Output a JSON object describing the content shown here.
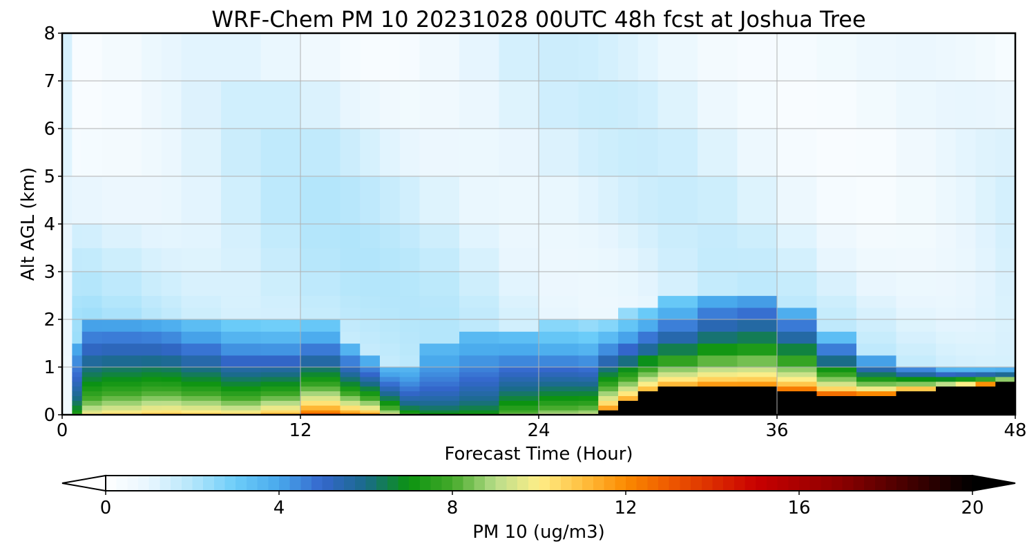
{
  "chart_data": {
    "type": "heatmap",
    "title": "WRF-Chem PM 10  20231028 00UTC 48h fcst at Joshua Tree",
    "xlabel": "Forecast Time (Hour)",
    "ylabel": "Alt AGL (km)",
    "xlim": [
      0,
      48
    ],
    "ylim": [
      0,
      8
    ],
    "xticks": [
      "0",
      "12",
      "24",
      "36",
      "48"
    ],
    "yticks": [
      "0",
      "1",
      "2",
      "3",
      "4",
      "5",
      "6",
      "7",
      "8"
    ],
    "grid": true,
    "x_hours": [
      0,
      0.5,
      1,
      2,
      4,
      5,
      6,
      8,
      10,
      12,
      14,
      15,
      16,
      17,
      18,
      20,
      22,
      24,
      26,
      27,
      28,
      29,
      30,
      32,
      34,
      36,
      38,
      40,
      42,
      44,
      45,
      46,
      47,
      48
    ],
    "y_km": [
      0,
      0.05,
      0.1,
      0.2,
      0.3,
      0.4,
      0.5,
      0.6,
      0.7,
      0.8,
      0.9,
      1.0,
      1.25,
      1.5,
      1.75,
      2.0,
      2.25,
      2.5,
      3,
      3.5,
      4,
      5,
      6,
      7,
      8
    ],
    "pm10_profile_samples": {
      "columns": [
        {
          "hour": 0,
          "mixed_top_km": 0.0,
          "surface_value": 0.5
        },
        {
          "hour": 1,
          "mixed_top_km": 2.0,
          "surface_value": 10.5
        },
        {
          "hour": 5,
          "mixed_top_km": 2.1,
          "surface_value": 11.5
        },
        {
          "hour": 10,
          "mixed_top_km": 1.9,
          "surface_value": 11.0
        },
        {
          "hour": 13,
          "mixed_top_km": 1.9,
          "surface_value": 14.0
        },
        {
          "hour": 16,
          "mixed_top_km": 1.2,
          "surface_value": 12.5
        },
        {
          "hour": 17,
          "mixed_top_km": 1.0,
          "surface_value": 8.5
        },
        {
          "hour": 20,
          "mixed_top_km": 1.7,
          "surface_value": 7.0
        },
        {
          "hour": 24,
          "mixed_top_km": 1.9,
          "surface_value": 9.5
        },
        {
          "hour": 27,
          "mixed_top_km": 1.9,
          "surface_value": 10.0
        },
        {
          "hour": 30,
          "mixed_top_km": 2.4,
          "surface_value": 20.0,
          "peak_top_km": 0.55
        },
        {
          "hour": 34,
          "mixed_top_km": 2.8,
          "surface_value": 20.0,
          "peak_top_km": 0.62
        },
        {
          "hour": 36,
          "mixed_top_km": 2.6,
          "surface_value": 20.0,
          "peak_top_km": 0.58
        },
        {
          "hour": 40,
          "mixed_top_km": 1.3,
          "surface_value": 20.0,
          "peak_top_km": 0.4
        },
        {
          "hour": 44,
          "mixed_top_km": 1.0,
          "surface_value": 20.0,
          "peak_top_km": 0.55
        },
        {
          "hour": 48,
          "mixed_top_km": 1.0,
          "surface_value": 20.0,
          "peak_top_km": 0.7
        }
      ]
    },
    "colorbar": {
      "label": "PM 10  (ug/m3)",
      "ticks": [
        "0",
        "4",
        "8",
        "12",
        "16",
        "20"
      ],
      "range": [
        0,
        20
      ],
      "extend": "both",
      "colors": [
        [
          0,
          "#ffffff"
        ],
        [
          1,
          "#e8f6fe"
        ],
        [
          2,
          "#b4e6fb"
        ],
        [
          3,
          "#6ccdf9"
        ],
        [
          4,
          "#48a8ec"
        ],
        [
          5,
          "#3466cc"
        ],
        [
          6,
          "#1a6b8a"
        ],
        [
          7,
          "#0b9310"
        ],
        [
          8,
          "#44aa2a"
        ],
        [
          9,
          "#b9dd8a"
        ],
        [
          10,
          "#ffee88"
        ],
        [
          11,
          "#ffc040"
        ],
        [
          12,
          "#fb8a00"
        ],
        [
          13,
          "#ee5a00"
        ],
        [
          15,
          "#c90000"
        ],
        [
          17,
          "#8a0000"
        ],
        [
          20,
          "#000000"
        ]
      ]
    }
  }
}
